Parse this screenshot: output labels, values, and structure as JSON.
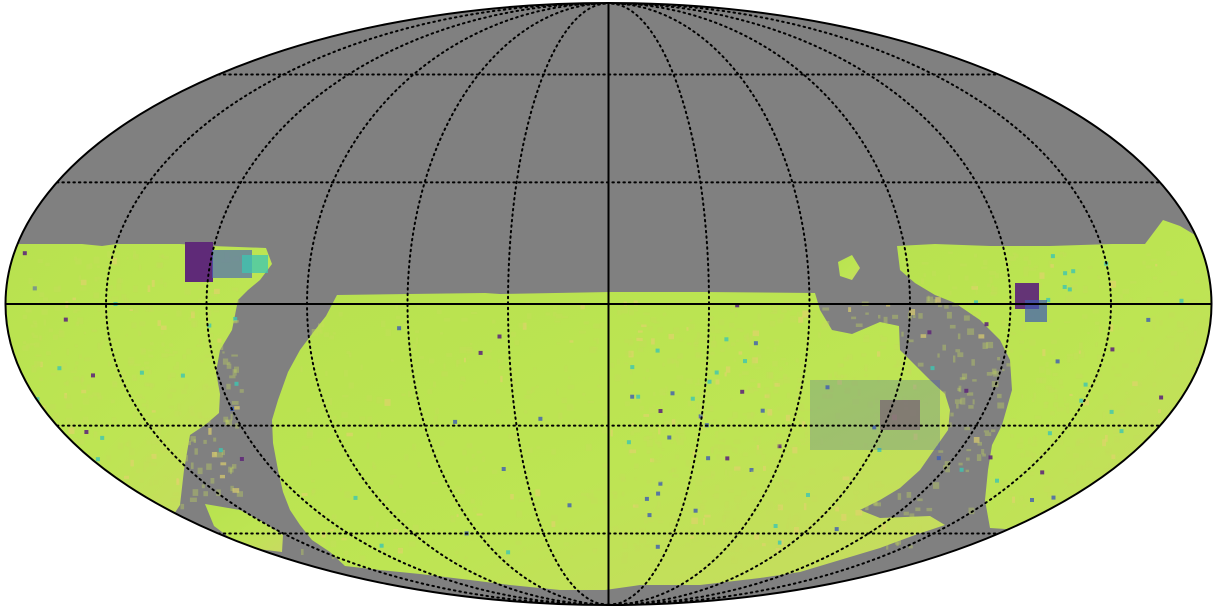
{
  "map": {
    "projection": "mollweide",
    "graticule": {
      "longitude_step_deg": 30,
      "latitude_step_deg": 30,
      "style": "dotted",
      "color": "#000000"
    },
    "central_axes": {
      "equator": true,
      "central_meridian": true,
      "style": "solid",
      "color": "#000000"
    },
    "colors": {
      "background_mask": "#808080",
      "outline": "#000000",
      "coverage_base": "#b2e34f",
      "coverage_alt": "#c7dc5d",
      "warm_patch": "#e1d36b",
      "cyan": "#3dc6b2",
      "blue": "#3d5bb3",
      "purple": "#5f2a78"
    },
    "legend": {
      "shown": false
    }
  }
}
